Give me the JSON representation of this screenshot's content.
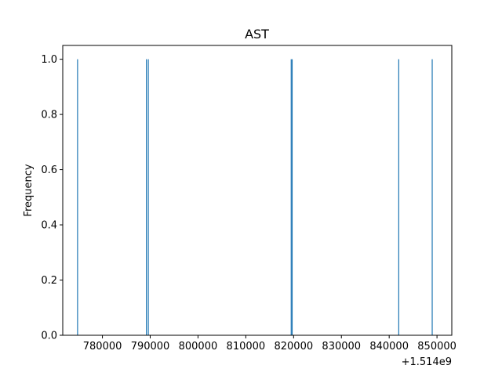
{
  "chart_data": {
    "type": "bar",
    "title": "AST",
    "xlabel": "",
    "ylabel": "Frequency",
    "x_offset_label": "+1.514e9",
    "xlim": [
      1514771700,
      1514853100
    ],
    "ylim": [
      0,
      1.05
    ],
    "x_ticks": [
      {
        "value": 1514780000,
        "label": "780000"
      },
      {
        "value": 1514790000,
        "label": "790000"
      },
      {
        "value": 1514800000,
        "label": "800000"
      },
      {
        "value": 1514810000,
        "label": "810000"
      },
      {
        "value": 1514820000,
        "label": "820000"
      },
      {
        "value": 1514830000,
        "label": "830000"
      },
      {
        "value": 1514840000,
        "label": "840000"
      },
      {
        "value": 1514850000,
        "label": "850000"
      }
    ],
    "y_ticks": [
      {
        "value": 0.0,
        "label": "0.0"
      },
      {
        "value": 0.2,
        "label": "0.2"
      },
      {
        "value": 0.4,
        "label": "0.4"
      },
      {
        "value": 0.6,
        "label": "0.6"
      },
      {
        "value": 0.8,
        "label": "0.8"
      },
      {
        "value": 1.0,
        "label": "1.0"
      }
    ],
    "bars": [
      {
        "x": 1514774800,
        "value": 1
      },
      {
        "x": 1514789200,
        "value": 1
      },
      {
        "x": 1514789600,
        "value": 1
      },
      {
        "x": 1514819500,
        "value": 1
      },
      {
        "x": 1514819700,
        "value": 1
      },
      {
        "x": 1514842000,
        "value": 1
      },
      {
        "x": 1514849000,
        "value": 1
      }
    ],
    "bar_color": "#1f77b4",
    "grid": false,
    "legend": "none"
  }
}
